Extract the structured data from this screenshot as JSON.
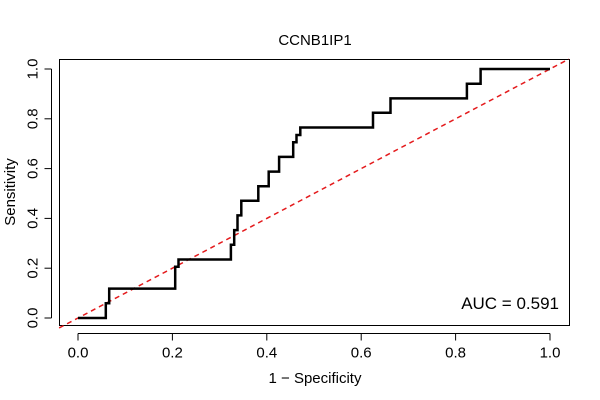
{
  "chart_data": {
    "type": "line",
    "title": "CCNB1IP1",
    "xlabel": "1 − Specificity",
    "ylabel": "Sensitivity",
    "xlim": [
      0,
      1
    ],
    "ylim": [
      0,
      1
    ],
    "x_ticks": [
      0.0,
      0.2,
      0.4,
      0.6,
      0.8,
      1.0
    ],
    "x_tick_labels": [
      "0.0",
      "0.2",
      "0.4",
      "0.6",
      "0.8",
      "1.0"
    ],
    "y_ticks": [
      0.0,
      0.2,
      0.4,
      0.6,
      0.8,
      1.0
    ],
    "y_tick_labels": [
      "0.0",
      "0.2",
      "0.4",
      "0.6",
      "0.8",
      "1.0"
    ],
    "series": [
      {
        "name": "ROC",
        "color": "#000000",
        "x": [
          0.0,
          0.059,
          0.059,
          0.066,
          0.066,
          0.206,
          0.206,
          0.213,
          0.213,
          0.324,
          0.324,
          0.331,
          0.331,
          0.338,
          0.338,
          0.346,
          0.346,
          0.382,
          0.382,
          0.404,
          0.404,
          0.426,
          0.426,
          0.456,
          0.456,
          0.463,
          0.463,
          0.471,
          0.471,
          0.625,
          0.625,
          0.662,
          0.662,
          0.824,
          0.824,
          0.853,
          0.853,
          1.0
        ],
        "y": [
          0.0,
          0.0,
          0.059,
          0.059,
          0.118,
          0.118,
          0.206,
          0.206,
          0.235,
          0.235,
          0.294,
          0.294,
          0.353,
          0.353,
          0.412,
          0.412,
          0.471,
          0.471,
          0.529,
          0.529,
          0.588,
          0.588,
          0.647,
          0.647,
          0.706,
          0.706,
          0.735,
          0.735,
          0.765,
          0.765,
          0.824,
          0.824,
          0.882,
          0.882,
          0.941,
          0.941,
          1.0,
          1.0
        ]
      },
      {
        "name": "Reference",
        "color": "#e41a1c",
        "x": [
          0,
          1
        ],
        "y": [
          0,
          1
        ]
      }
    ],
    "annotation": "AUC = 0.591"
  }
}
